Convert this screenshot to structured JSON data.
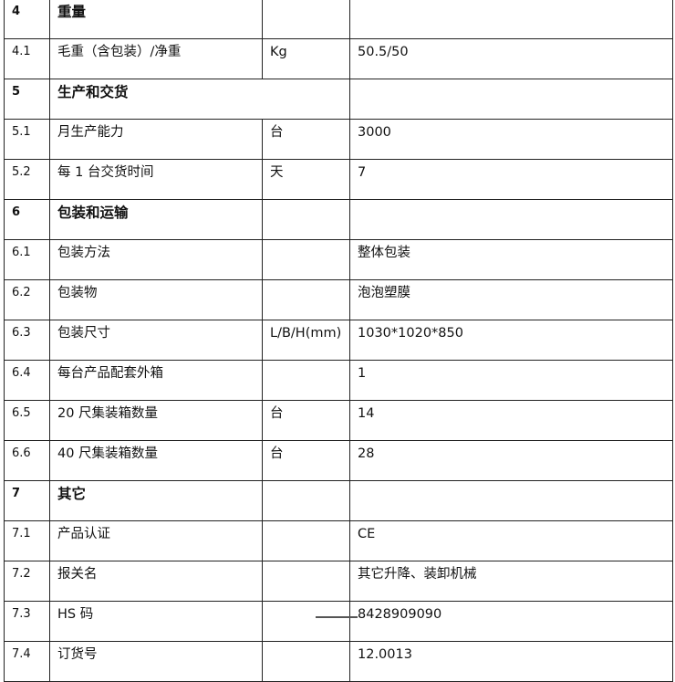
{
  "rows": [
    {
      "no": "4",
      "name": "重量",
      "unit": "",
      "value": "",
      "section": true
    },
    {
      "no": "4.1",
      "name": "毛重（含包装）/净重",
      "unit": "Kg",
      "value": "50.5/50"
    },
    {
      "no": "5",
      "name": "生产和交货",
      "unit": "",
      "value": "",
      "section": true,
      "span": true
    },
    {
      "no": "5.1",
      "name": "月生产能力",
      "unit": "台",
      "value": "3000"
    },
    {
      "no": "5.2",
      "name": "每 1 台交货时间",
      "unit": "天",
      "value": "7"
    },
    {
      "no": "6",
      "name": "包装和运输",
      "unit": "",
      "value": "",
      "section": true
    },
    {
      "no": "6.1",
      "name": "包装方法",
      "unit": "",
      "value": "整体包装"
    },
    {
      "no": "6.2",
      "name": "包装物",
      "unit": "",
      "value": "泡泡塑膜"
    },
    {
      "no": "6.3",
      "name": "包装尺寸",
      "unit": "L/B/H(mm)",
      "value": "1030*1020*850"
    },
    {
      "no": "6.4",
      "name": "每台产品配套外箱",
      "unit": "",
      "value": "1"
    },
    {
      "no": "6.5",
      "name": "20 尺集装箱数量",
      "unit": "台",
      "value": "14"
    },
    {
      "no": "6.6",
      "name": "40 尺集装箱数量",
      "unit": "台",
      "value": "28"
    },
    {
      "no": "7",
      "name": "其它",
      "unit": "",
      "value": "",
      "section": true
    },
    {
      "no": "7.1",
      "name": "产品认证",
      "unit": "",
      "value": "CE"
    },
    {
      "no": "7.2",
      "name": "报关名",
      "unit": "",
      "value": "其它升降、装卸机械"
    },
    {
      "no": "7.3",
      "name": "HS 码",
      "unit": "",
      "value": "8428909090"
    },
    {
      "no": "7.4",
      "name": "订货号",
      "unit": "",
      "value": "12.0013"
    }
  ]
}
